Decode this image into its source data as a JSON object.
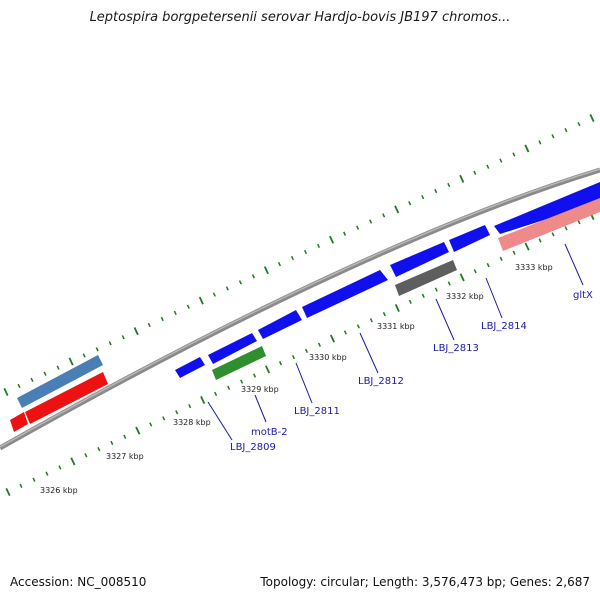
{
  "title": "Leptospira borgpetersenii serovar Hardjo-bovis JB197 chromos...",
  "footer": {
    "accession": "Accession: NC_008510",
    "summary": "Topology: circular; Length: 3,576,473 bp; Genes: 2,687"
  },
  "colors": {
    "backbone": "#7f7f7f",
    "tick": "#1e7a1e",
    "cds_forward": "#1010ee",
    "cds_reverse_red": "#ee1111",
    "cds_blue_gray": "#4a7fb5",
    "cds_green": "#2f8f2f",
    "cds_gray": "#5e5e5e",
    "cds_pink": "#ee8a8a",
    "label": "#1a1aa8"
  },
  "kbp_labels": [
    "3326 kbp",
    "3327 kbp",
    "3328 kbp",
    "3329 kbp",
    "3330 kbp",
    "3331 kbp",
    "3332 kbp",
    "3333 kbp"
  ],
  "gene_labels": [
    "LBJ_2809",
    "motB-2",
    "LBJ_2811",
    "LBJ_2812",
    "LBJ_2813",
    "LBJ_2814",
    "gltX"
  ]
}
